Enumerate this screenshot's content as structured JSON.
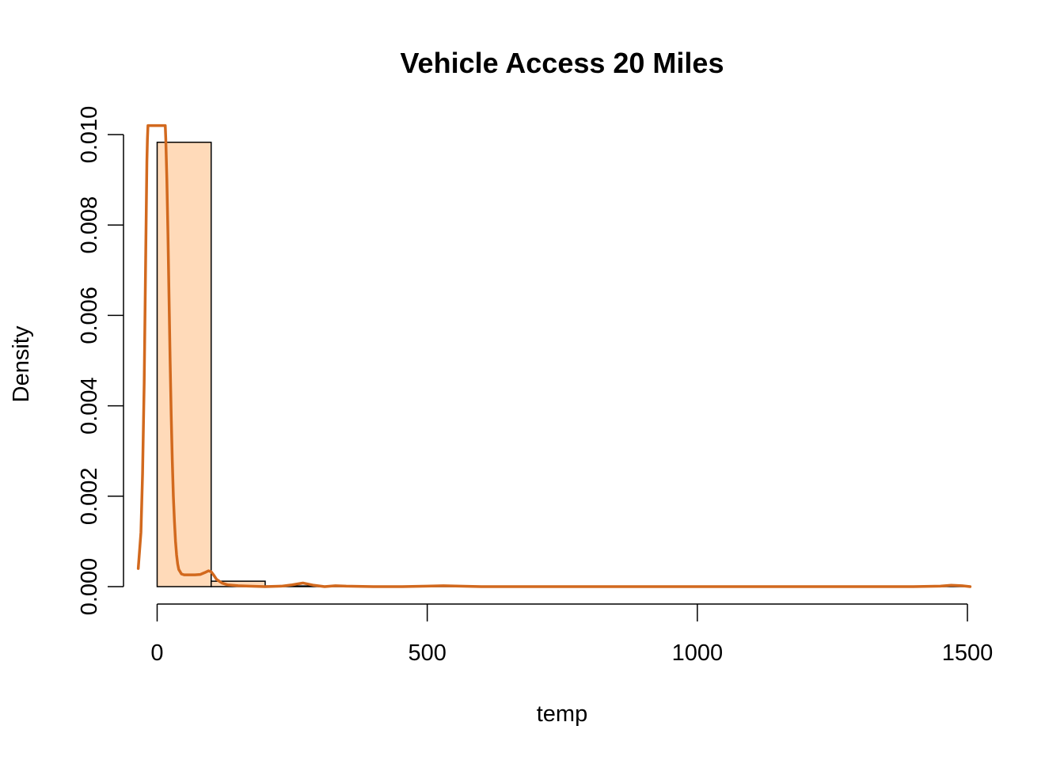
{
  "chart_data": {
    "type": "bar",
    "title": "Vehicle Access 20 Miles",
    "xlabel": "temp",
    "ylabel": "Density",
    "xlim": [
      0,
      1500
    ],
    "ylim": [
      0,
      0.01
    ],
    "x_ticks": [
      {
        "value": 0,
        "label": "0"
      },
      {
        "value": 500,
        "label": "500"
      },
      {
        "value": 1000,
        "label": "1000"
      },
      {
        "value": 1500,
        "label": "1500"
      }
    ],
    "y_ticks": [
      {
        "value": 0,
        "label": "0.000"
      },
      {
        "value": 0.002,
        "label": "0.002"
      },
      {
        "value": 0.004,
        "label": "0.004"
      },
      {
        "value": 0.006,
        "label": "0.006"
      },
      {
        "value": 0.008,
        "label": "0.008"
      },
      {
        "value": 0.01,
        "label": "0.010"
      }
    ],
    "bins": [
      {
        "start": 0,
        "end": 100,
        "density": 0.00983
      },
      {
        "start": 100,
        "end": 200,
        "density": 0.00012
      },
      {
        "start": 200,
        "end": 300,
        "density": 1.5e-05
      },
      {
        "start": 300,
        "end": 400,
        "density": 5e-06
      },
      {
        "start": 400,
        "end": 500,
        "density": 0.0
      },
      {
        "start": 500,
        "end": 600,
        "density": 5e-06
      },
      {
        "start": 600,
        "end": 700,
        "density": 0.0
      },
      {
        "start": 700,
        "end": 800,
        "density": 0.0
      },
      {
        "start": 800,
        "end": 900,
        "density": 0.0
      },
      {
        "start": 900,
        "end": 1000,
        "density": 0.0
      },
      {
        "start": 1000,
        "end": 1100,
        "density": 0.0
      },
      {
        "start": 1100,
        "end": 1200,
        "density": 0.0
      },
      {
        "start": 1200,
        "end": 1300,
        "density": 0.0
      },
      {
        "start": 1300,
        "end": 1400,
        "density": 0.0
      },
      {
        "start": 1400,
        "end": 1500,
        "density": 5e-06
      }
    ],
    "density_curve": {
      "x": [
        -35,
        -30,
        -27,
        -24,
        -21,
        -19,
        -18,
        -17,
        15,
        16,
        18,
        20,
        22,
        24,
        26,
        28,
        30,
        32,
        34,
        36,
        38,
        40,
        45,
        50,
        60,
        70,
        80,
        90,
        95,
        100,
        105,
        110,
        120,
        130,
        150,
        170,
        200,
        230,
        250,
        270,
        290,
        310,
        330,
        350,
        400,
        450,
        500,
        530,
        560,
        600,
        700,
        800,
        900,
        1000,
        1100,
        1200,
        1300,
        1400,
        1450,
        1470,
        1490,
        1505
      ],
      "y": [
        0.0004,
        0.0012,
        0.0025,
        0.0045,
        0.0075,
        0.0094,
        0.0099,
        0.0102,
        0.0102,
        0.0099,
        0.009,
        0.0078,
        0.0064,
        0.005,
        0.0038,
        0.0028,
        0.002,
        0.00145,
        0.001,
        0.0007,
        0.0005,
        0.00038,
        0.00028,
        0.00026,
        0.00026,
        0.00026,
        0.00027,
        0.00032,
        0.00035,
        0.00033,
        0.00025,
        0.00016,
        8e-05,
        4e-05,
        2e-05,
        1e-05,
        0.0,
        1e-05,
        4e-05,
        8e-05,
        3e-05,
        0.0,
        2e-05,
        1e-05,
        0.0,
        0.0,
        1e-05,
        2e-05,
        1e-05,
        0.0,
        0.0,
        0.0,
        0.0,
        0.0,
        0.0,
        0.0,
        0.0,
        0.0,
        1e-05,
        3e-05,
        2e-05,
        0.0
      ]
    },
    "bar_fill": "#FFDAB9",
    "bar_border": "#000000",
    "curve_color": "#D2691E",
    "grid": false,
    "legend": "none"
  }
}
